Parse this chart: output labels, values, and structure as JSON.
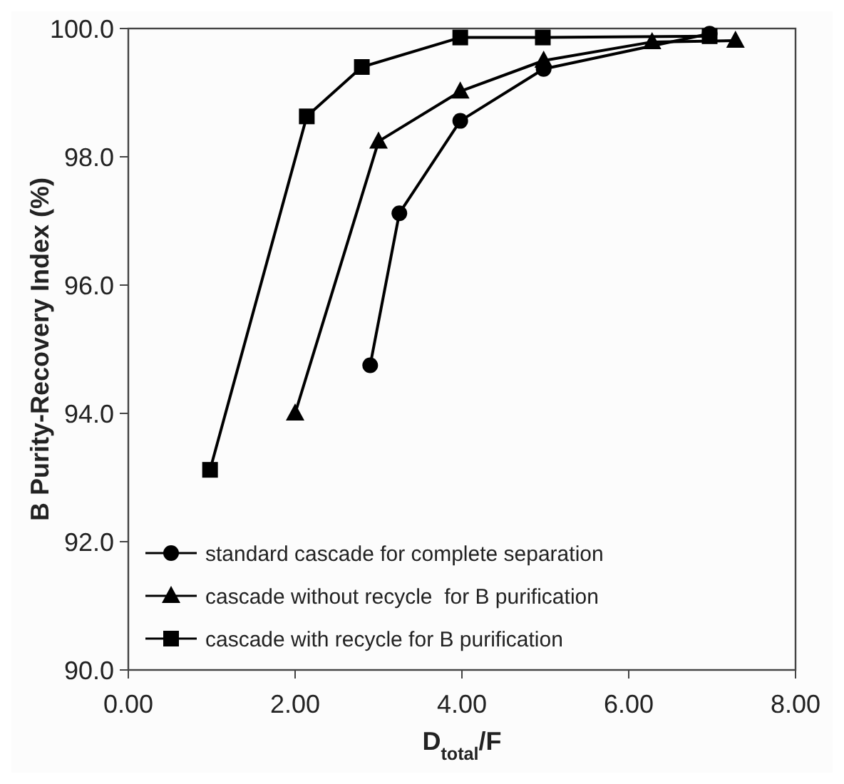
{
  "chart_data": {
    "type": "line",
    "xlabel": "D$_{total}$/F",
    "ylabel": "B Purity-Recovery Index (%)",
    "xlim": [
      0,
      8
    ],
    "xticks": [
      {
        "value": 0,
        "label": "0.00"
      },
      {
        "value": 2,
        "label": "2.00"
      },
      {
        "value": 4,
        "label": "4.00"
      },
      {
        "value": 6,
        "label": "6.00"
      },
      {
        "value": 8,
        "label": "8.00"
      }
    ],
    "ylim": [
      90,
      100
    ],
    "yticks": [
      {
        "value": 90,
        "label": "90.0"
      },
      {
        "value": 92,
        "label": "92.0"
      },
      {
        "value": 94,
        "label": "94.0"
      },
      {
        "value": 96,
        "label": "96.0"
      },
      {
        "value": 98,
        "label": "98.0"
      },
      {
        "value": 100,
        "label": "100.0"
      }
    ],
    "grid": false,
    "legend": "bottom left",
    "line_style": "solid",
    "series": [
      {
        "name": "standard cascade for complete separation",
        "color": "#000000",
        "marker": "circle",
        "x": [
          2.9,
          3.25,
          3.98,
          4.98,
          6.97
        ],
        "values": [
          94.75,
          97.12,
          98.56,
          99.37,
          99.92
        ]
      },
      {
        "name": "cascade without recycle  for B purification",
        "color": "#000000",
        "marker": "triangle",
        "x": [
          2.0,
          3.0,
          3.98,
          4.98,
          6.28,
          7.28
        ],
        "values": [
          94.0,
          98.24,
          99.02,
          99.5,
          99.79,
          99.81
        ]
      },
      {
        "name": "cascade with recycle for B purification",
        "color": "#000000",
        "marker": "square",
        "x": [
          0.98,
          2.14,
          2.8,
          3.98,
          4.97,
          6.97
        ],
        "values": [
          93.12,
          98.63,
          99.4,
          99.86,
          99.86,
          99.88
        ]
      }
    ]
  }
}
